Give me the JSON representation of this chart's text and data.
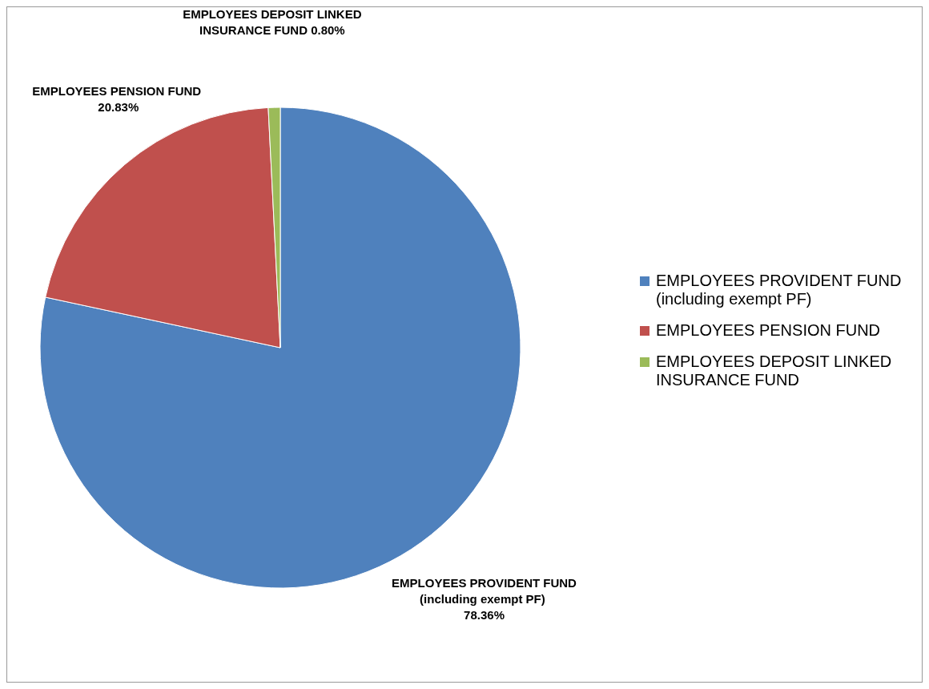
{
  "chart_data": {
    "type": "pie",
    "categories": [
      "EMPLOYEES PROVIDENT FUND (including exempt PF)",
      "EMPLOYEES PENSION FUND",
      "EMPLOYEES DEPOSIT LINKED INSURANCE FUND"
    ],
    "values": [
      78.36,
      20.83,
      0.8
    ],
    "value_labels": [
      "78.36%",
      "20.83%",
      "0.80%"
    ],
    "colors": [
      "#4f81bd",
      "#c0504d",
      "#9bbb59"
    ],
    "legend": "right"
  }
}
